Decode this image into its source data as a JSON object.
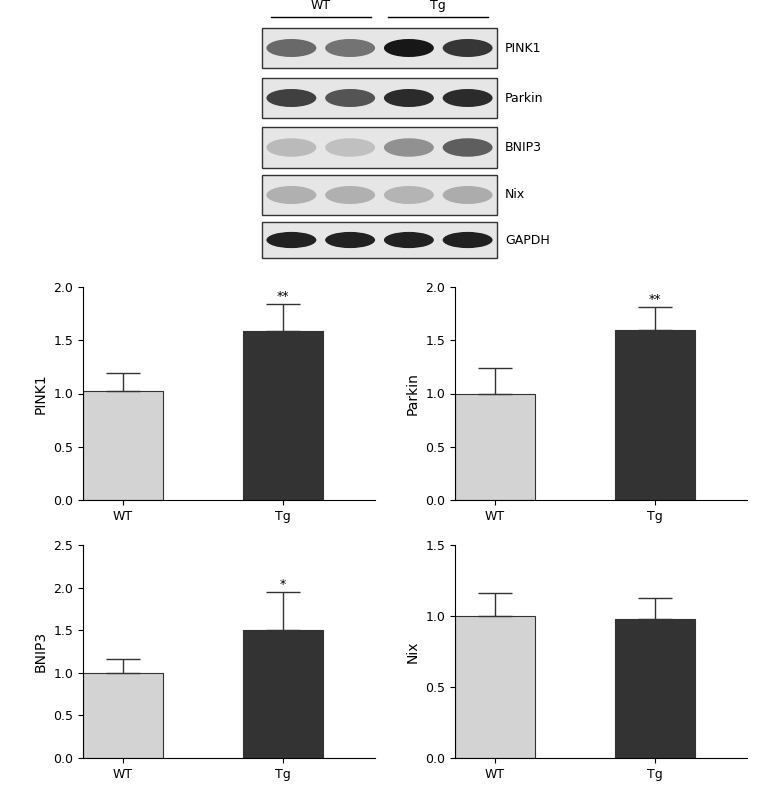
{
  "blot": {
    "lanes": [
      {
        "label": "WT",
        "count": 2
      },
      {
        "label": "Tg",
        "count": 2
      }
    ],
    "proteins": [
      "PINK1",
      "Parkin",
      "BNIP3",
      "Nix",
      "GAPDH"
    ]
  },
  "chart_data": [
    {
      "type": "bar",
      "categories": [
        "WT",
        "Tg"
      ],
      "values": [
        1.02,
        1.59
      ],
      "errors": [
        0.17,
        0.25
      ],
      "significance": [
        null,
        "**"
      ],
      "colors": [
        "#d3d3d3",
        "#333333"
      ],
      "y_label": "PINK1",
      "ylim": [
        0,
        2.0
      ],
      "yticks": [
        {
          "value": 0,
          "label": "0.0"
        },
        {
          "value": 0.5,
          "label": "0.5"
        },
        {
          "value": 1.0,
          "label": "1.0"
        },
        {
          "value": 1.5,
          "label": "1.5"
        },
        {
          "value": 2.0,
          "label": "2.0"
        }
      ]
    },
    {
      "type": "bar",
      "categories": [
        "WT",
        "Tg"
      ],
      "values": [
        1.0,
        1.6
      ],
      "errors": [
        0.24,
        0.21
      ],
      "significance": [
        null,
        "**"
      ],
      "colors": [
        "#d3d3d3",
        "#333333"
      ],
      "y_label": "Parkin",
      "ylim": [
        0,
        2.0
      ],
      "yticks": [
        {
          "value": 0,
          "label": "0.0"
        },
        {
          "value": 0.5,
          "label": "0.5"
        },
        {
          "value": 1.0,
          "label": "1.0"
        },
        {
          "value": 1.5,
          "label": "1.5"
        },
        {
          "value": 2.0,
          "label": "2.0"
        }
      ]
    },
    {
      "type": "bar",
      "categories": [
        "WT",
        "Tg"
      ],
      "values": [
        1.0,
        1.5
      ],
      "errors": [
        0.16,
        0.45
      ],
      "significance": [
        null,
        "*"
      ],
      "colors": [
        "#d3d3d3",
        "#333333"
      ],
      "y_label": "BNIP3",
      "ylim": [
        0,
        2.5
      ],
      "yticks": [
        {
          "value": 0,
          "label": "0.0"
        },
        {
          "value": 0.5,
          "label": "0.5"
        },
        {
          "value": 1.0,
          "label": "1.0"
        },
        {
          "value": 1.5,
          "label": "1.5"
        },
        {
          "value": 2.0,
          "label": "2.0"
        },
        {
          "value": 2.5,
          "label": "2.5"
        }
      ]
    },
    {
      "type": "bar",
      "categories": [
        "WT",
        "Tg"
      ],
      "values": [
        1.0,
        0.98
      ],
      "errors": [
        0.16,
        0.15
      ],
      "colors": [
        "#d3d3d3",
        "#333333"
      ],
      "y_label": "Nix",
      "ylim": [
        0,
        1.5
      ],
      "yticks": [
        {
          "value": 0,
          "label": "0.0"
        },
        {
          "value": 0.5,
          "label": "0.5"
        },
        {
          "value": 1.0,
          "label": "1.0"
        },
        {
          "value": 1.5,
          "label": "1.5"
        }
      ]
    }
  ]
}
